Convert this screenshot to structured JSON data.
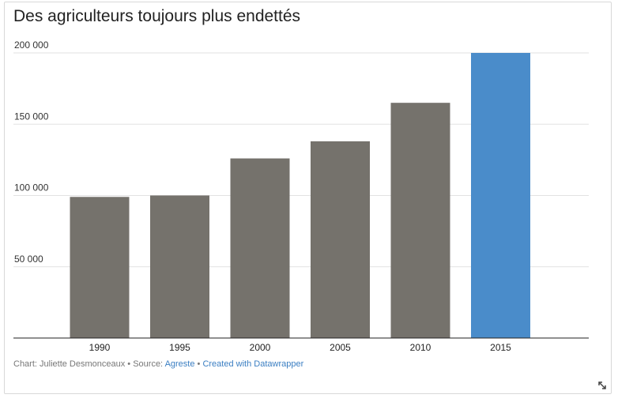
{
  "title": "Des agriculteurs toujours plus endettés",
  "footer": {
    "chart_label": "Chart: Juliette Desmonceaux",
    "sep1": " • ",
    "source_label": "Source: ",
    "source_link": "Agreste",
    "sep2": " • ",
    "created_link": "Created with Datawrapper"
  },
  "resize_icon": "resize-icon",
  "colors": {
    "bar": "#75726c",
    "highlight": "#4a8cca",
    "grid": "#e2e2e2",
    "axis": "#222222"
  },
  "chart_data": {
    "type": "bar",
    "title": "Des agriculteurs toujours plus endettés",
    "categories": [
      "1990",
      "1995",
      "2000",
      "2005",
      "2010",
      "2015"
    ],
    "values": [
      99000,
      100000,
      126000,
      138000,
      165000,
      200000
    ],
    "highlight_category": "2015",
    "ylim": [
      0,
      200000
    ],
    "yticks": [
      50000,
      100000,
      150000,
      200000
    ],
    "ytick_labels": [
      "50 000",
      "100 000",
      "150 000",
      "200 000"
    ],
    "xlabel": "",
    "ylabel": "",
    "grid": true
  }
}
